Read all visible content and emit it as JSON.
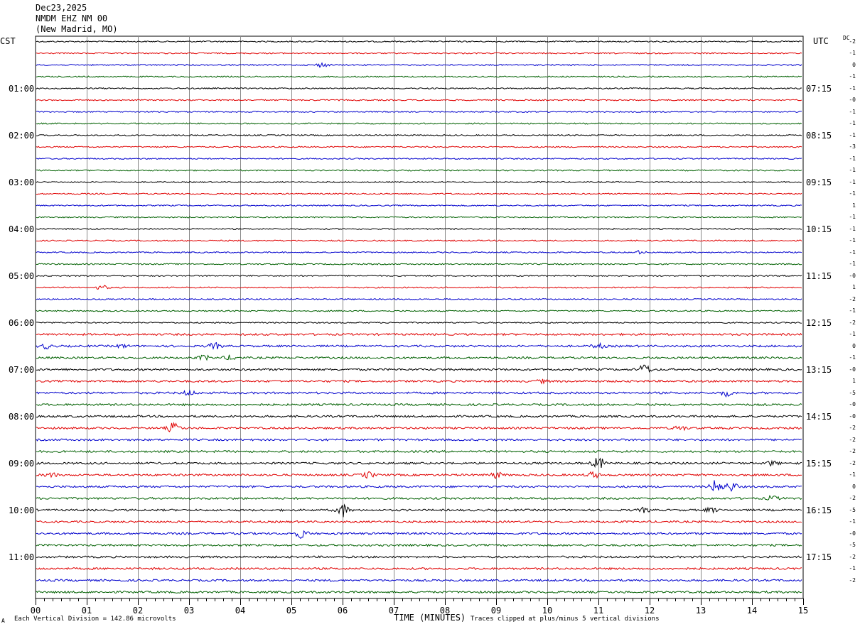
{
  "header": {
    "date": "Dec23,2025",
    "station": "NMDM EHZ NM 00",
    "location": "(New Madrid, MO)"
  },
  "labels": {
    "left_tz": "CST",
    "right_tz": "UTC",
    "dc": "DC",
    "xlabel": "TIME (MINUTES)",
    "vertical_division": "Each Vertical Division =  142.86 microvolts",
    "clip_note": "Traces clipped at plus/minus 5 vertical divisions",
    "logo": "A"
  },
  "chart_data": {
    "type": "line",
    "title": "",
    "xlabel": "TIME (MINUTES)",
    "ylabel": "",
    "xlim": [
      0,
      15
    ],
    "x_ticks": [
      "00",
      "01",
      "02",
      "03",
      "04",
      "05",
      "06",
      "07",
      "08",
      "09",
      "10",
      "11",
      "12",
      "13",
      "14",
      "15"
    ],
    "trace_colors": [
      "#000000",
      "#e00000",
      "#0000cc",
      "#006000"
    ],
    "trace_count": 48,
    "hour_labels_cst": [
      "01:00",
      "02:00",
      "03:00",
      "04:00",
      "05:00",
      "06:00",
      "07:00",
      "08:00",
      "09:00",
      "10:00",
      "11:00"
    ],
    "hour_labels_utc": [
      "07:15",
      "08:15",
      "09:15",
      "10:15",
      "11:15",
      "12:15",
      "13:15",
      "14:15",
      "15:15",
      "16:15",
      "17:15"
    ],
    "dc_offsets": [
      "-2",
      "-1",
      "0",
      "-1",
      "-1",
      "-0",
      "-1",
      "-1",
      "-1",
      "-3",
      "-1",
      "-1",
      "-1",
      "-1",
      "1",
      "-1",
      "-1",
      "-1",
      "-1",
      "-1",
      "-0",
      "1",
      "-2",
      "-1",
      "-2",
      "-1",
      "0",
      "-1",
      "-0",
      "1",
      "-5",
      "-0",
      "-0",
      "-2",
      "-2",
      "-2",
      "-2",
      "-1",
      "0",
      "-2",
      "-5",
      "-1",
      "-0",
      "-5",
      "-2",
      "-1",
      "-2"
    ],
    "grid": true,
    "series": [
      {
        "trace": 2,
        "events": [
          {
            "minute": 5.6,
            "amp": 3
          }
        ]
      },
      {
        "trace": 18,
        "events": [
          {
            "minute": 11.8,
            "amp": 2
          }
        ]
      },
      {
        "trace": 21,
        "events": [
          {
            "minute": 1.3,
            "amp": 3
          }
        ]
      },
      {
        "trace": 26,
        "events": [
          {
            "minute": 0.2,
            "amp": 3
          },
          {
            "minute": 1.7,
            "amp": 2
          },
          {
            "minute": 3.5,
            "amp": 4
          },
          {
            "minute": 11.0,
            "amp": 3
          }
        ]
      },
      {
        "trace": 27,
        "events": [
          {
            "minute": 3.3,
            "amp": 3
          },
          {
            "minute": 3.8,
            "amp": 3
          }
        ]
      },
      {
        "trace": 28,
        "events": [
          {
            "minute": 11.9,
            "amp": 7
          }
        ]
      },
      {
        "trace": 29,
        "events": [
          {
            "minute": 9.9,
            "amp": 2
          }
        ]
      },
      {
        "trace": 30,
        "events": [
          {
            "minute": 3.0,
            "amp": 3
          },
          {
            "minute": 13.5,
            "amp": 4
          }
        ]
      },
      {
        "trace": 33,
        "events": [
          {
            "minute": 2.7,
            "amp": 7
          },
          {
            "minute": 12.6,
            "amp": 3
          }
        ]
      },
      {
        "trace": 36,
        "events": [
          {
            "minute": 11.0,
            "amp": 8
          },
          {
            "minute": 14.4,
            "amp": 3
          }
        ]
      },
      {
        "trace": 37,
        "events": [
          {
            "minute": 0.3,
            "amp": 3
          },
          {
            "minute": 6.5,
            "amp": 4
          },
          {
            "minute": 9.0,
            "amp": 4
          },
          {
            "minute": 10.9,
            "amp": 4
          }
        ]
      },
      {
        "trace": 38,
        "events": [
          {
            "minute": 13.3,
            "amp": 9
          },
          {
            "minute": 13.6,
            "amp": 6
          }
        ]
      },
      {
        "trace": 39,
        "events": [
          {
            "minute": 14.4,
            "amp": 3
          }
        ]
      },
      {
        "trace": 40,
        "events": [
          {
            "minute": 6.0,
            "amp": 9
          },
          {
            "minute": 11.9,
            "amp": 3
          },
          {
            "minute": 13.2,
            "amp": 3
          }
        ]
      },
      {
        "trace": 42,
        "events": [
          {
            "minute": 5.2,
            "amp": 6
          }
        ]
      }
    ]
  }
}
